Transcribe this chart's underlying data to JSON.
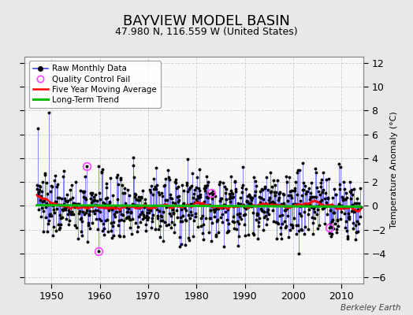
{
  "title": "BAYVIEW MODEL BASIN",
  "subtitle": "47.980 N, 116.559 W (United States)",
  "ylabel": "Temperature Anomaly (°C)",
  "credit": "Berkeley Earth",
  "xlim": [
    1944.5,
    2014.5
  ],
  "ylim": [
    -6.5,
    12.5
  ],
  "yticks": [
    -6,
    -4,
    -2,
    0,
    2,
    4,
    6,
    8,
    10,
    12
  ],
  "xticks": [
    1950,
    1960,
    1970,
    1980,
    1990,
    2000,
    2010
  ],
  "start_year": 1947,
  "end_year": 2013,
  "seed": 137,
  "background_color": "#e8e8e8",
  "plot_bg_color": "#f8f8f8",
  "line_color": "#4444ff",
  "dot_color": "#000000",
  "ma_color": "#ff0000",
  "trend_color": "#00bb00",
  "qc_color": "#ff44ff",
  "title_fontsize": 13,
  "subtitle_fontsize": 9,
  "tick_fontsize": 9,
  "ylabel_fontsize": 8,
  "legend_fontsize": 7.5,
  "qc_points": [
    [
      1957.25,
      3.3
    ],
    [
      1959.75,
      -3.8
    ],
    [
      1983.0,
      1.1
    ],
    [
      2007.5,
      -1.8
    ]
  ]
}
